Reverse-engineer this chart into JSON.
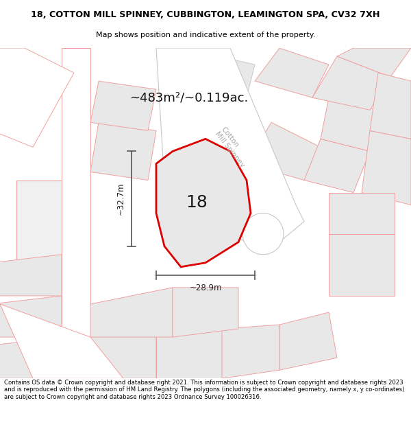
{
  "title_line1": "18, COTTON MILL SPINNEY, CUBBINGTON, LEAMINGTON SPA, CV32 7XH",
  "title_line2": "Map shows position and indicative extent of the property.",
  "area_text": "~483m²/~0.119ac.",
  "label_18": "18",
  "dim_height": "~32.7m",
  "dim_width": "~28.9m",
  "road_label": "Cotton\nMill Spinney",
  "footer": "Contains OS data © Crown copyright and database right 2021. This information is subject to Crown copyright and database rights 2023 and is reproduced with the permission of HM Land Registry. The polygons (including the associated geometry, namely x, y co-ordinates) are subject to Crown copyright and database rights 2023 Ordnance Survey 100026316.",
  "bg_color": "#ffffff",
  "map_bg": "#ffffff",
  "property_fill": "#e8e8e8",
  "property_edge": "#dd0000",
  "other_poly_edge": "#f0a0a0",
  "other_poly_edge2": "#c8c8c8",
  "other_poly_fill": "#e8e8e8",
  "road_fill": "#ffffff",
  "dim_line_color": "#555555",
  "title_color": "#000000",
  "road_label_color": "#999999",
  "title_bg": "#ffffff",
  "footer_bg": "#ffffff"
}
